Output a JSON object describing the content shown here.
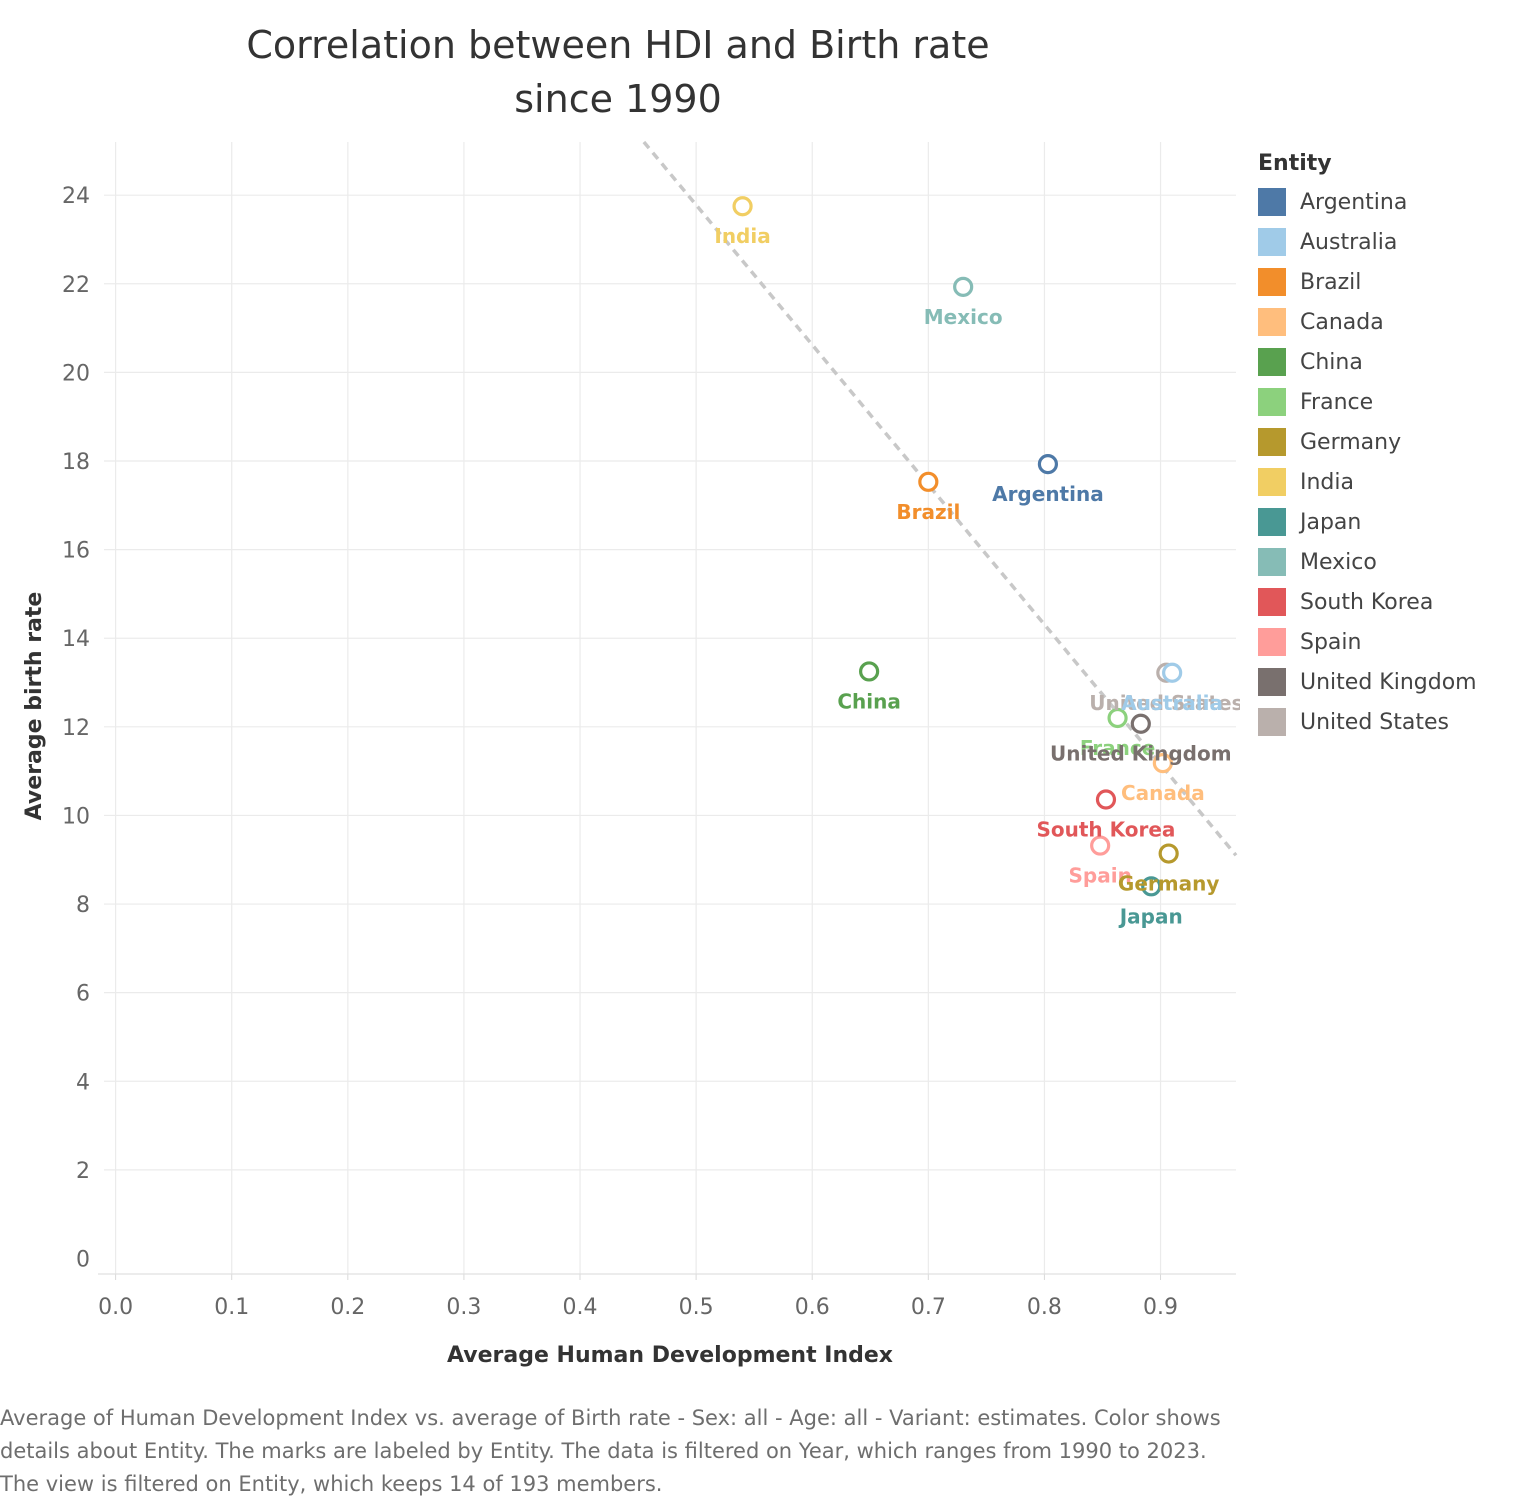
{
  "title": {
    "line1": "Correlation between HDI and Birth rate",
    "line2": "since 1990"
  },
  "caption": "Average of Human Development Index vs. average of Birth rate - Sex: all - Age: all - Variant: estimates.  Color shows details about Entity.  The marks are labeled by Entity. The data is filtered on Year, which ranges from 1990 to 2023. The view is filtered on Entity, which keeps 14 of 193 members.",
  "legend": {
    "title": "Entity",
    "items": [
      {
        "label": "Argentina",
        "color": "#4e79a7"
      },
      {
        "label": "Australia",
        "color": "#a0cbe8"
      },
      {
        "label": "Brazil",
        "color": "#f28e2b"
      },
      {
        "label": "Canada",
        "color": "#ffbe7d"
      },
      {
        "label": "China",
        "color": "#59a14f"
      },
      {
        "label": "France",
        "color": "#8cd17d"
      },
      {
        "label": "Germany",
        "color": "#b6992d"
      },
      {
        "label": "India",
        "color": "#f1ce63"
      },
      {
        "label": "Japan",
        "color": "#499894"
      },
      {
        "label": "Mexico",
        "color": "#86bcb6"
      },
      {
        "label": "South Korea",
        "color": "#e15759"
      },
      {
        "label": "Spain",
        "color": "#ff9d9a"
      },
      {
        "label": "United Kingdom",
        "color": "#79706e"
      },
      {
        "label": "United States",
        "color": "#bab0ac"
      }
    ]
  },
  "chart_data": {
    "type": "scatter",
    "xlabel": "Average Human Development Index",
    "ylabel": "Average birth rate",
    "xlim": [
      -0.01,
      0.965
    ],
    "ylim": [
      -0.35,
      25.2
    ],
    "xticks": [
      0.0,
      0.1,
      0.2,
      0.3,
      0.4,
      0.5,
      0.6,
      0.7,
      0.8,
      0.9
    ],
    "xtick_labels": [
      "0.0",
      "0.1",
      "0.2",
      "0.3",
      "0.4",
      "0.5",
      "0.6",
      "0.7",
      "0.8",
      "0.9"
    ],
    "yticks": [
      0,
      2,
      4,
      6,
      8,
      10,
      12,
      14,
      16,
      18,
      20,
      22,
      24
    ],
    "ytick_labels": [
      "0",
      "2",
      "4",
      "6",
      "8",
      "10",
      "12",
      "14",
      "16",
      "18",
      "20",
      "22",
      "24"
    ],
    "grid": true,
    "trend_line": {
      "style": "dashed",
      "color": "#c8c8c8",
      "from": [
        0.455,
        25.2
      ],
      "to": [
        0.965,
        9.1
      ]
    },
    "points": [
      {
        "name": "India",
        "x": 0.54,
        "y": 23.75,
        "color": "#f1ce63"
      },
      {
        "name": "Mexico",
        "x": 0.73,
        "y": 21.93,
        "color": "#86bcb6"
      },
      {
        "name": "Argentina",
        "x": 0.803,
        "y": 17.93,
        "color": "#4e79a7"
      },
      {
        "name": "Brazil",
        "x": 0.7,
        "y": 17.53,
        "color": "#f28e2b"
      },
      {
        "name": "China",
        "x": 0.649,
        "y": 13.25,
        "color": "#59a14f"
      },
      {
        "name": "United States",
        "x": 0.905,
        "y": 13.22,
        "color": "#bab0ac"
      },
      {
        "name": "Australia",
        "x": 0.91,
        "y": 13.22,
        "color": "#a0cbe8"
      },
      {
        "name": "France",
        "x": 0.863,
        "y": 12.2,
        "color": "#8cd17d"
      },
      {
        "name": "United Kingdom",
        "x": 0.883,
        "y": 12.07,
        "color": "#79706e"
      },
      {
        "name": "Canada",
        "x": 0.902,
        "y": 11.18,
        "color": "#ffbe7d"
      },
      {
        "name": "South Korea",
        "x": 0.853,
        "y": 10.36,
        "color": "#e15759"
      },
      {
        "name": "Spain",
        "x": 0.848,
        "y": 9.32,
        "color": "#ff9d9a"
      },
      {
        "name": "Germany",
        "x": 0.907,
        "y": 9.14,
        "color": "#b6992d"
      },
      {
        "name": "Japan",
        "x": 0.892,
        "y": 8.4,
        "color": "#499894"
      }
    ]
  }
}
